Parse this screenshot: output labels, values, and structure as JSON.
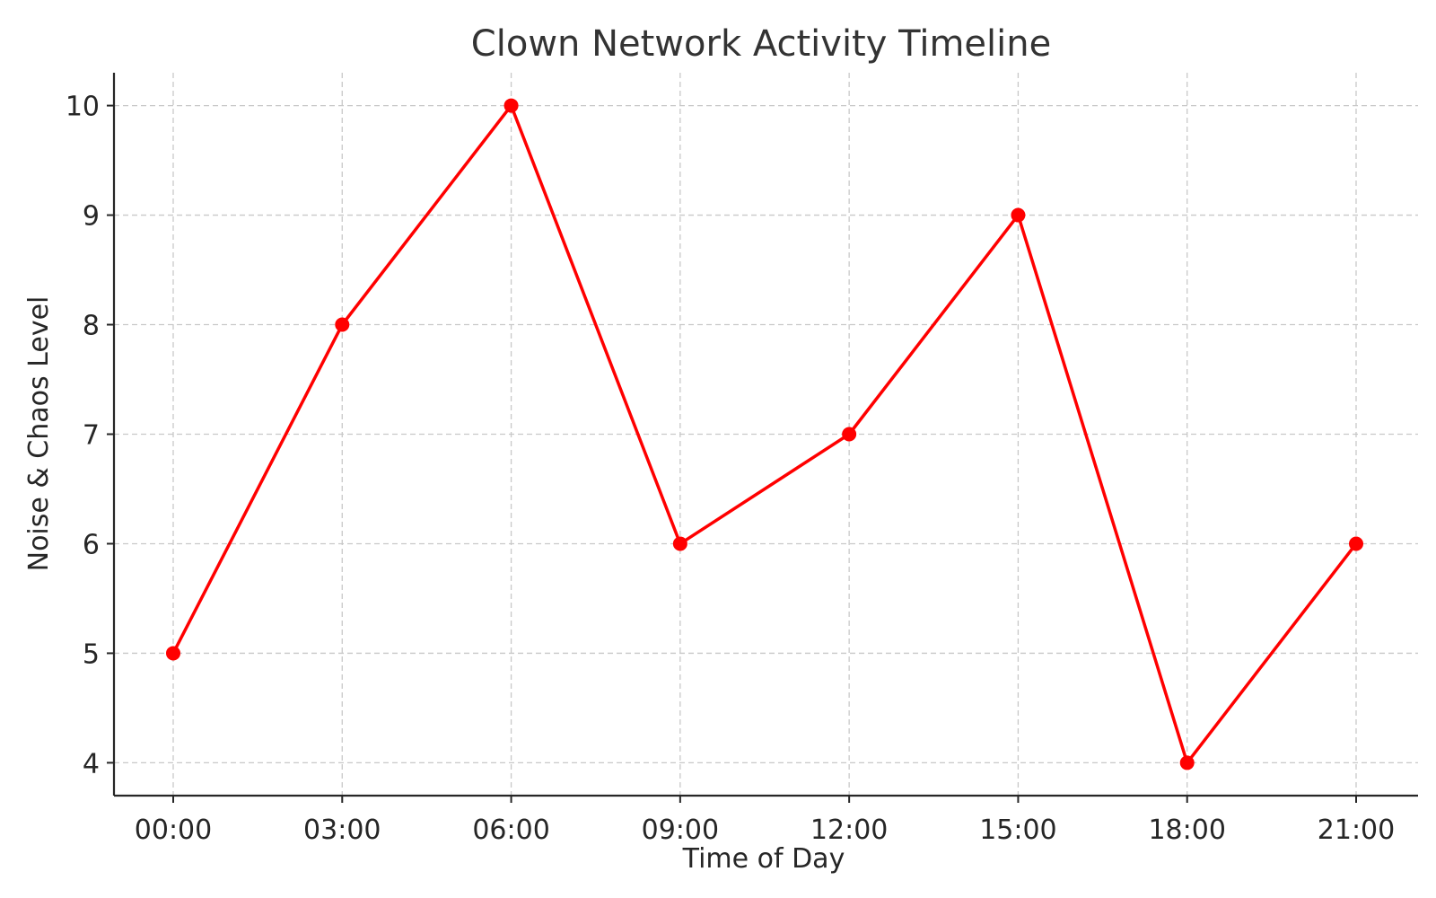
{
  "chart_data": {
    "type": "line",
    "title": "Clown Network Activity Timeline",
    "xlabel": "Time of Day",
    "ylabel": "Noise & Chaos Level",
    "categories": [
      "00:00",
      "03:00",
      "06:00",
      "09:00",
      "12:00",
      "15:00",
      "18:00",
      "21:00"
    ],
    "series": [
      {
        "values": [
          5,
          8,
          10,
          6,
          7,
          9,
          4,
          6
        ],
        "color": "#ff0000",
        "marker": "circle"
      }
    ],
    "yticks": [
      4,
      5,
      6,
      7,
      8,
      9,
      10
    ],
    "ylim": [
      3.7,
      10.3
    ],
    "grid": true,
    "legend": "none"
  }
}
